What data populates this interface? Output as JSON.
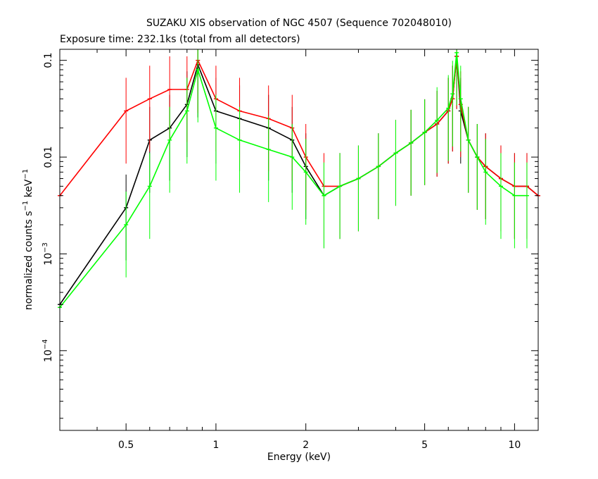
{
  "chart_data": {
    "type": "scatter",
    "title": "SUZAKU XIS observation of NGC 4507 (Sequence 702048010)",
    "subtitle": "Exposure time: 232.1ks (total from all detectors)",
    "xlabel": "Energy (keV)",
    "ylabel": {
      "prefix": "normalized counts s",
      "exp1": "−1",
      "mid": " keV",
      "exp2": "−1"
    },
    "x_scale": "log",
    "y_scale": "log",
    "xlim": [
      0.3,
      12
    ],
    "ylim": [
      1.5e-05,
      0.13
    ],
    "x_ticks": [
      {
        "value": 0.5,
        "label": "0.5"
      },
      {
        "value": 1,
        "label": "1"
      },
      {
        "value": 2,
        "label": "2"
      },
      {
        "value": 5,
        "label": "5"
      },
      {
        "value": 10,
        "label": "10"
      }
    ],
    "y_ticks": [
      {
        "value": 0.0001,
        "label": "10",
        "exp": "−4"
      },
      {
        "value": 0.001,
        "label": "10",
        "exp": "−3"
      },
      {
        "value": 0.01,
        "label": "0.01",
        "exp": ""
      },
      {
        "value": 0.1,
        "label": "0.1",
        "exp": ""
      }
    ],
    "grid": false,
    "series": [
      {
        "color": "#000000",
        "x": [
          0.3,
          0.5,
          0.6,
          0.7,
          0.8,
          0.87,
          1.0,
          1.2,
          1.5,
          1.8,
          2.0,
          2.3,
          2.6,
          3.0,
          3.5,
          4.0,
          4.5,
          5.0,
          5.5,
          6.0,
          6.2,
          6.4,
          6.6,
          7.0,
          7.5,
          8.0,
          9.0,
          10.0,
          11.0,
          12.0
        ],
        "y": [
          0.0003,
          0.003,
          0.015,
          0.02,
          0.035,
          0.09,
          0.03,
          0.025,
          0.02,
          0.015,
          0.008,
          0.004,
          0.005,
          0.006,
          0.008,
          0.011,
          0.014,
          0.018,
          0.022,
          0.03,
          0.04,
          0.11,
          0.03,
          0.015,
          0.01,
          0.008,
          0.006,
          0.005,
          0.005,
          0.004
        ]
      },
      {
        "color": "#ff0000",
        "x": [
          0.3,
          0.5,
          0.6,
          0.7,
          0.8,
          0.87,
          1.0,
          1.2,
          1.5,
          1.8,
          2.0,
          2.3,
          2.6,
          3.0,
          3.5,
          4.0,
          4.5,
          5.0,
          5.5,
          6.0,
          6.2,
          6.4,
          6.6,
          7.0,
          7.5,
          8.0,
          9.0,
          10.0,
          11.0,
          12.0
        ],
        "y": [
          0.004,
          0.03,
          0.04,
          0.05,
          0.05,
          0.1,
          0.04,
          0.03,
          0.025,
          0.02,
          0.01,
          0.005,
          0.005,
          0.006,
          0.008,
          0.011,
          0.014,
          0.018,
          0.022,
          0.03,
          0.04,
          0.11,
          0.035,
          0.015,
          0.01,
          0.008,
          0.006,
          0.005,
          0.005,
          0.004
        ]
      },
      {
        "color": "#00ff00",
        "x": [
          0.3,
          0.5,
          0.6,
          0.7,
          0.8,
          0.87,
          1.0,
          1.2,
          1.5,
          1.8,
          2.0,
          2.3,
          2.6,
          3.0,
          3.5,
          4.0,
          4.5,
          5.0,
          5.5,
          6.0,
          6.2,
          6.4,
          6.6,
          7.0,
          7.5,
          8.0,
          9.0,
          10.0,
          11.0
        ],
        "y": [
          0.00028,
          0.002,
          0.005,
          0.015,
          0.03,
          0.08,
          0.02,
          0.015,
          0.012,
          0.01,
          0.007,
          0.004,
          0.005,
          0.006,
          0.008,
          0.011,
          0.014,
          0.018,
          0.024,
          0.032,
          0.045,
          0.12,
          0.04,
          0.015,
          0.01,
          0.007,
          0.005,
          0.004,
          0.004
        ]
      }
    ]
  }
}
